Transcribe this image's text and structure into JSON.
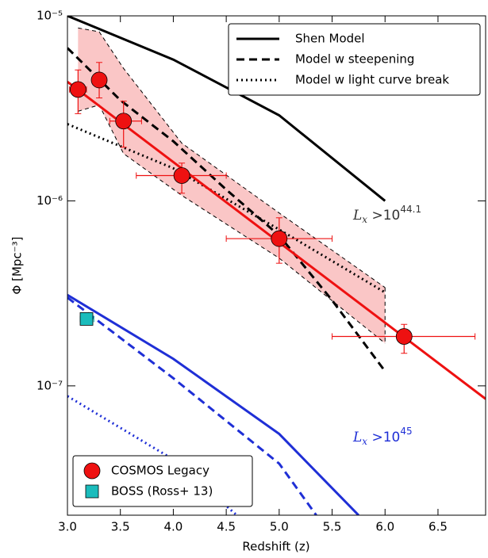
{
  "chart_data": {
    "type": "line",
    "xlabel": "Redshift (z)",
    "ylabel": "Φ [Mpc⁻³]",
    "xlim": [
      3.0,
      6.95
    ],
    "ylim": [
      2e-08,
      1e-05
    ],
    "ylog": true,
    "xticks": [
      {
        "value": 3,
        "label": "3.0"
      },
      3.5,
      {
        "value": 4,
        "label": "4.0"
      },
      4.5,
      {
        "value": 5,
        "label": "5.0"
      },
      5.5,
      {
        "value": 6,
        "label": "6.0"
      },
      6.5
    ],
    "yticks": [
      {
        "value": 1e-07,
        "label": "10⁻⁷"
      },
      {
        "value": 1e-06,
        "label": "10⁻⁶"
      },
      {
        "value": 1e-05,
        "label": "10⁻⁵"
      }
    ],
    "band": {
      "color": "#f9b8b8",
      "x": [
        3.1,
        3.3,
        3.53,
        4.08,
        5.0,
        6.0
      ],
      "upper": [
        8.6e-06,
        8.2e-06,
        5.2e-06,
        2.05e-06,
        8.6e-07,
        3.4e-07
      ],
      "lower": [
        3.05e-06,
        3.3e-06,
        1.8e-06,
        1.07e-06,
        4.9e-07,
        1.7e-07
      ]
    },
    "lines": [
      {
        "name": "Shen Model",
        "color": "#000000",
        "style": "solid",
        "x": [
          3.0,
          4.0,
          5.0,
          6.0
        ],
        "values": [
          1e-05,
          5.8e-06,
          2.9e-06,
          1e-06
        ]
      },
      {
        "name": "Model w steepening",
        "color": "#000000",
        "style": "dashed",
        "x": [
          3.0,
          3.5,
          4.0,
          4.5,
          5.0,
          5.5,
          6.0
        ],
        "values": [
          6.7e-06,
          3.5e-06,
          2.1e-06,
          1.15e-06,
          6.5e-07,
          2.9e-07,
          1.2e-07
        ]
      },
      {
        "name": "Model w light curve break",
        "color": "#000000",
        "style": "dotted",
        "x": [
          3.0,
          4.0,
          5.0,
          6.0
        ],
        "values": [
          2.6e-06,
          1.5e-06,
          7e-07,
          3.2e-07
        ]
      },
      {
        "color": "#1f2fd6",
        "style": "solid",
        "x": [
          3.0,
          4.0,
          5.0,
          5.75
        ],
        "values": [
          3.1e-07,
          1.4e-07,
          5.5e-08,
          2e-08
        ]
      },
      {
        "color": "#1f2fd6",
        "style": "dashed",
        "x": [
          3.0,
          4.0,
          5.0,
          5.35
        ],
        "values": [
          3e-07,
          1.1e-07,
          3.8e-08,
          2e-08
        ]
      },
      {
        "color": "#1f2fd6",
        "style": "dotted",
        "x": [
          3.0,
          4.0,
          4.6
        ],
        "values": [
          8.8e-08,
          4e-08,
          2e-08
        ]
      }
    ],
    "fit": {
      "color": "#ee1111",
      "x": [
        3.0,
        6.95
      ],
      "values": [
        4.4e-06,
        8.5e-08
      ]
    },
    "points": [
      {
        "name": "COSMOS Legacy",
        "color": "#ee1111",
        "marker": "circle",
        "x": [
          3.1,
          3.3,
          3.53,
          4.08,
          5.0,
          6.18
        ],
        "values": [
          4e-06,
          4.5e-06,
          2.7e-06,
          1.37e-06,
          6.25e-07,
          1.85e-07
        ],
        "x_low": [
          3.02,
          3.24,
          3.4,
          3.65,
          4.5,
          5.5
        ],
        "x_high": [
          3.18,
          3.36,
          3.7,
          4.5,
          5.5,
          6.85
        ],
        "y_low": [
          2.96e-06,
          3.6e-06,
          1.95e-06,
          1.1e-06,
          4.6e-07,
          1.5e-07
        ],
        "y_high": [
          5.1e-06,
          5.6e-06,
          3.46e-06,
          1.6e-06,
          8.1e-07,
          2.15e-07
        ]
      },
      {
        "name": "BOSS (Ross+ 13)",
        "color": "#1bbcbc",
        "marker": "square",
        "x": [
          3.18
        ],
        "values": [
          2.3e-07
        ],
        "x_low": [
          3.12
        ],
        "x_high": [
          3.25
        ],
        "y_low": [
          2.2e-07
        ],
        "y_high": [
          2.4e-07
        ]
      }
    ],
    "annotations": [
      {
        "text": "L",
        "sub": "x",
        "mid": " >10",
        "sup": "44.1",
        "color": "#333333"
      },
      {
        "text": "L",
        "sub": "x",
        "mid": " >10",
        "sup": "45",
        "color": "#1f2fd6"
      }
    ]
  }
}
